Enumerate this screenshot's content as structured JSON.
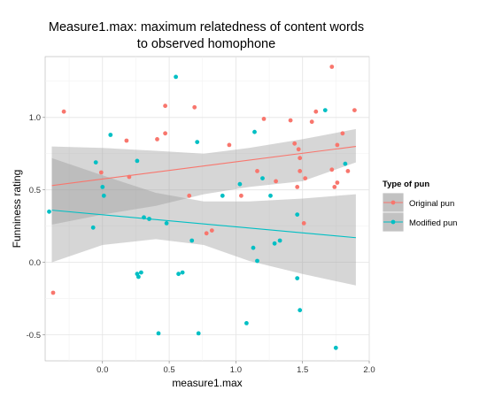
{
  "chart_data": {
    "type": "scatter",
    "title_lines": [
      "Measure1.max: maximum relatedness of content words",
      "to observed homophone"
    ],
    "xlabel": "measure1.max",
    "ylabel": "Funniness rating",
    "xlim": [
      -0.43,
      2.0
    ],
    "ylim": [
      -0.68,
      1.42
    ],
    "x_ticks": [
      0.0,
      0.5,
      1.0,
      1.5,
      2.0
    ],
    "x_tick_labels": [
      "0.0",
      "0.5",
      "1.0",
      "1.5",
      "2.0"
    ],
    "y_ticks": [
      -0.5,
      0.0,
      0.5,
      1.0
    ],
    "y_tick_labels": [
      "-0.5",
      "0.0",
      "0.5",
      "1.0"
    ],
    "grid": true,
    "legend": {
      "title": "Type of pun",
      "position": "right",
      "entries": [
        "Original pun",
        "Modified pun"
      ]
    },
    "series": [
      {
        "name": "Original pun",
        "color": "#F8766D",
        "points": [
          [
            -0.37,
            -0.21
          ],
          [
            -0.29,
            1.04
          ],
          [
            -0.01,
            0.62
          ],
          [
            0.18,
            0.84
          ],
          [
            0.2,
            0.59
          ],
          [
            0.41,
            0.85
          ],
          [
            0.47,
            1.08
          ],
          [
            0.47,
            0.89
          ],
          [
            0.65,
            0.46
          ],
          [
            0.69,
            1.07
          ],
          [
            0.78,
            0.2
          ],
          [
            0.82,
            0.22
          ],
          [
            0.95,
            0.81
          ],
          [
            1.04,
            0.46
          ],
          [
            1.16,
            0.63
          ],
          [
            1.21,
            0.99
          ],
          [
            1.3,
            0.56
          ],
          [
            1.41,
            0.98
          ],
          [
            1.44,
            0.82
          ],
          [
            1.46,
            0.52
          ],
          [
            1.47,
            0.78
          ],
          [
            1.48,
            0.72
          ],
          [
            1.48,
            0.63
          ],
          [
            1.51,
            0.27
          ],
          [
            1.52,
            0.58
          ],
          [
            1.57,
            0.97
          ],
          [
            1.6,
            1.04
          ],
          [
            1.72,
            1.35
          ],
          [
            1.72,
            0.64
          ],
          [
            1.74,
            0.52
          ],
          [
            1.76,
            0.55
          ],
          [
            1.76,
            0.81
          ],
          [
            1.8,
            0.89
          ],
          [
            1.84,
            0.63
          ],
          [
            1.89,
            1.05
          ]
        ],
        "fit": {
          "x0": -0.38,
          "y0": 0.53,
          "x1": 1.9,
          "y1": 0.8
        },
        "band": {
          "x": [
            -0.38,
            0.0,
            0.4,
            0.76,
            1.1,
            1.5,
            1.9
          ],
          "upper": [
            0.8,
            0.79,
            0.77,
            0.75,
            0.79,
            0.85,
            0.92
          ],
          "lower": [
            0.26,
            0.33,
            0.39,
            0.47,
            0.52,
            0.56,
            0.69
          ]
        }
      },
      {
        "name": "Modified pun",
        "color": "#00BFC4",
        "points": [
          [
            -0.4,
            0.35
          ],
          [
            -0.07,
            0.24
          ],
          [
            -0.05,
            0.69
          ],
          [
            0.0,
            0.52
          ],
          [
            0.01,
            0.46
          ],
          [
            0.06,
            0.88
          ],
          [
            0.26,
            0.7
          ],
          [
            0.26,
            -0.08
          ],
          [
            0.27,
            -0.1
          ],
          [
            0.29,
            -0.07
          ],
          [
            0.31,
            0.31
          ],
          [
            0.35,
            0.3
          ],
          [
            0.42,
            -0.49
          ],
          [
            0.48,
            0.27
          ],
          [
            0.55,
            1.28
          ],
          [
            0.57,
            -0.08
          ],
          [
            0.6,
            -0.07
          ],
          [
            0.67,
            0.15
          ],
          [
            0.71,
            0.83
          ],
          [
            0.72,
            -0.49
          ],
          [
            0.9,
            0.46
          ],
          [
            1.03,
            0.54
          ],
          [
            1.08,
            -0.42
          ],
          [
            1.13,
            0.1
          ],
          [
            1.14,
            0.9
          ],
          [
            1.16,
            0.01
          ],
          [
            1.2,
            0.58
          ],
          [
            1.26,
            0.46
          ],
          [
            1.29,
            0.13
          ],
          [
            1.33,
            0.15
          ],
          [
            1.46,
            -0.11
          ],
          [
            1.46,
            0.33
          ],
          [
            1.48,
            -0.33
          ],
          [
            1.67,
            1.05
          ],
          [
            1.75,
            -0.59
          ],
          [
            1.82,
            0.68
          ]
        ],
        "fit": {
          "x0": -0.38,
          "y0": 0.36,
          "x1": 1.9,
          "y1": 0.17
        },
        "band": {
          "x": [
            -0.38,
            0.0,
            0.4,
            0.76,
            1.1,
            1.5,
            1.9
          ],
          "upper": [
            0.72,
            0.6,
            0.48,
            0.42,
            0.42,
            0.44,
            0.47
          ],
          "lower": [
            0.0,
            0.12,
            0.16,
            0.12,
            0.01,
            -0.08,
            -0.16
          ]
        }
      }
    ]
  }
}
